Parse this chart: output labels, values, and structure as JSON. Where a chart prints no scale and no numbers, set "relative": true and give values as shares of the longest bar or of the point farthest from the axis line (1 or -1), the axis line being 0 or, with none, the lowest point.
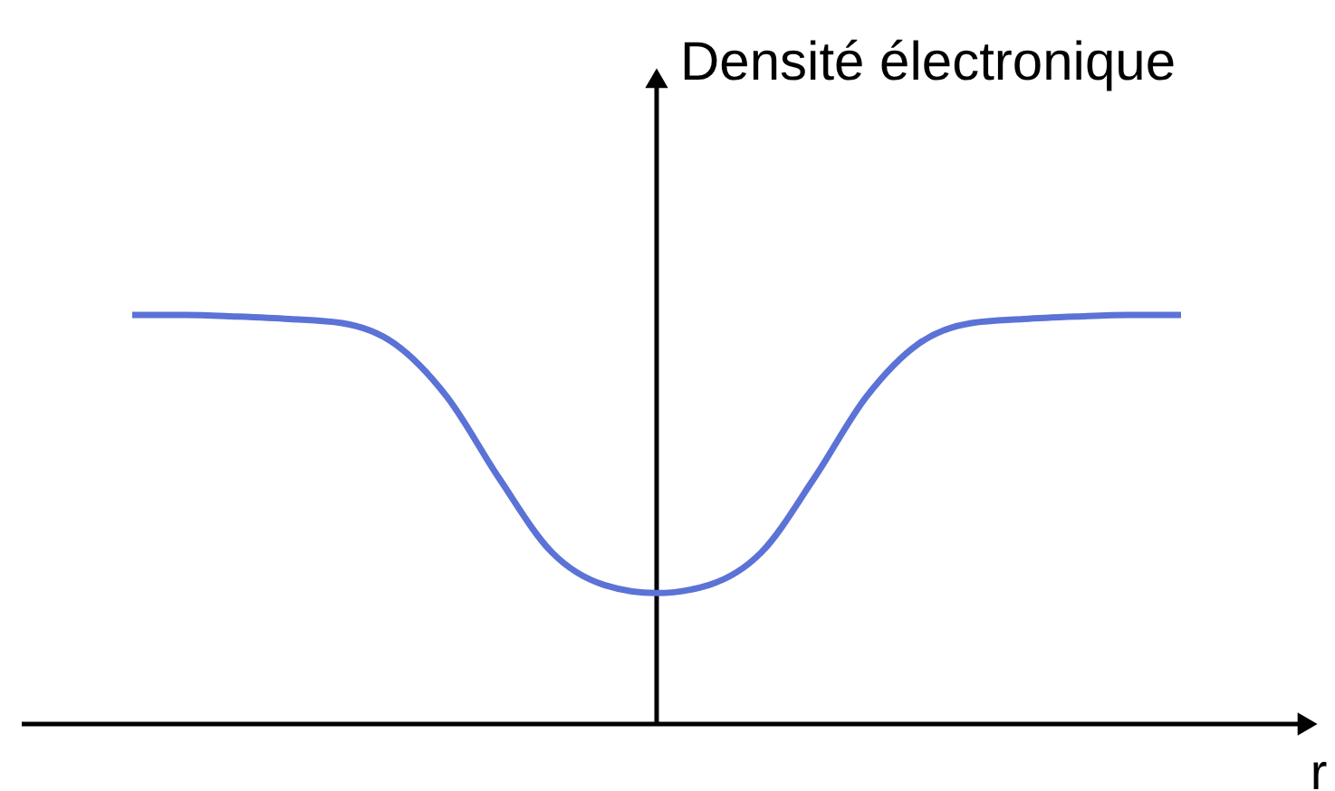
{
  "chart_data": {
    "type": "line",
    "relative": true,
    "xlabel": "r",
    "ylabel": "Densité électronique",
    "categories": [
      null,
      null,
      null,
      null,
      null,
      null,
      null,
      null,
      null,
      null,
      null,
      null,
      null,
      null,
      null,
      null,
      null,
      null,
      null,
      null,
      null
    ],
    "series": [
      {
        "color": "#5b72d6",
        "values": [
          1,
          1,
          0.996,
          0.99,
          0.98,
          0.93,
          0.8,
          0.6,
          0.42,
          0.34,
          0.32,
          0.34,
          0.42,
          0.6,
          0.8,
          0.93,
          0.98,
          0.99,
          0.996,
          1,
          1
        ]
      }
    ]
  }
}
